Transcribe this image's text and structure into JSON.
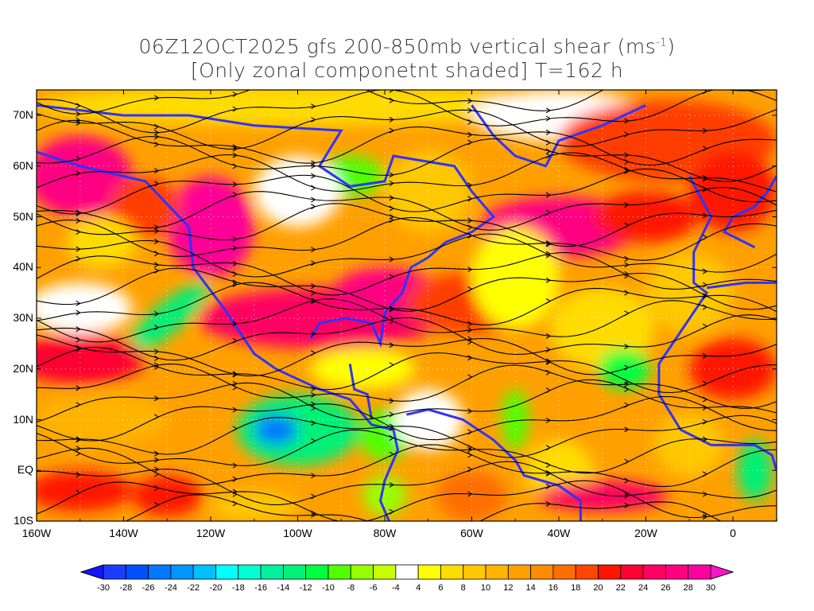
{
  "title": {
    "line1": "06Z12OCT2025 gfs 200-850mb vertical shear (ms",
    "line1_sup": "-1",
    "line1_end": ")",
    "line2": "[Only zonal componetnt shaded] T=162 h"
  },
  "axes": {
    "lat_labels": [
      "70N",
      "60N",
      "50N",
      "40N",
      "30N",
      "20N",
      "10N",
      "EQ",
      "10S"
    ],
    "lon_labels": [
      "160W",
      "140W",
      "120W",
      "100W",
      "80W",
      "60W",
      "40W",
      "20W",
      "0"
    ],
    "lon_range": [
      -160,
      10
    ],
    "lat_range": [
      -10,
      75
    ]
  },
  "colorbar": {
    "labels": [
      "-30",
      "-28",
      "-26",
      "-24",
      "-22",
      "-20",
      "-18",
      "-16",
      "-14",
      "-12",
      "-10",
      "-8",
      "-6",
      "-4",
      "4",
      "6",
      "8",
      "10",
      "12",
      "14",
      "16",
      "18",
      "20",
      "22",
      "24",
      "26",
      "28",
      "30"
    ],
    "low_arrow_color": "#1414ff",
    "high_arrow_color": "#ff14c8",
    "colors": [
      "#1e3cff",
      "#0050ff",
      "#0078ff",
      "#0096ff",
      "#00c0ff",
      "#00ffff",
      "#00ffd2",
      "#00f0a0",
      "#00f078",
      "#00ff40",
      "#50ff00",
      "#96ff00",
      "#c8ff00",
      "#ffffff",
      "#ffff00",
      "#ffdc00",
      "#ffc800",
      "#ffb400",
      "#ffa000",
      "#ff8c00",
      "#ff6e00",
      "#ff4600",
      "#ff1400",
      "#ff0032",
      "#ff0064",
      "#ff0082",
      "#ff00a0"
    ]
  },
  "legend_colors": {
    "coastline": "#3232ff",
    "streamline": "#000000",
    "contour": "#a000c8"
  }
}
